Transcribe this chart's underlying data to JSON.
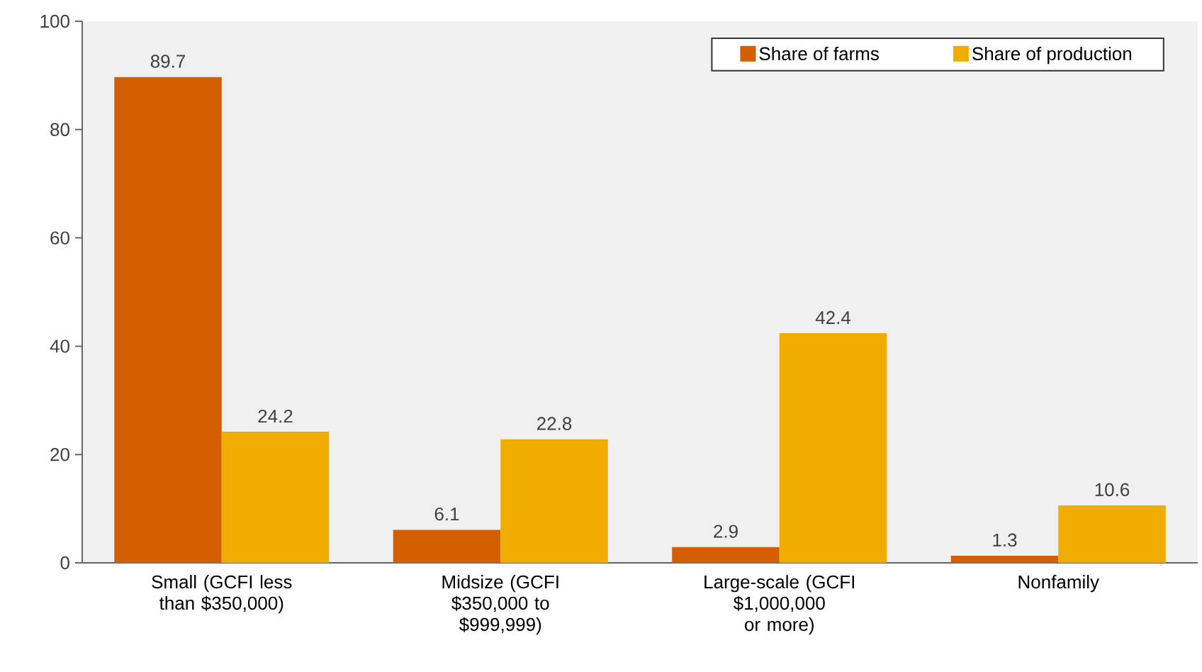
{
  "chart_data": {
    "type": "bar",
    "categories": [
      "Small (GCFI less than $350,000)",
      "Midsize (GCFI $350,000 to $999,999)",
      "Large-scale (GCFI $1,000,000 or more)",
      "Nonfamily"
    ],
    "series": [
      {
        "name": "Share of farms",
        "color": "#d35f00",
        "values": [
          89.7,
          6.1,
          2.9,
          1.3
        ]
      },
      {
        "name": "Share of production",
        "color": "#f0ad00",
        "values": [
          24.2,
          22.8,
          42.4,
          10.6
        ]
      }
    ],
    "ylim": [
      0,
      100
    ],
    "yticks": [
      0,
      20,
      40,
      60,
      80,
      100
    ],
    "grid": false,
    "legend": "top right",
    "data_labels": true
  }
}
